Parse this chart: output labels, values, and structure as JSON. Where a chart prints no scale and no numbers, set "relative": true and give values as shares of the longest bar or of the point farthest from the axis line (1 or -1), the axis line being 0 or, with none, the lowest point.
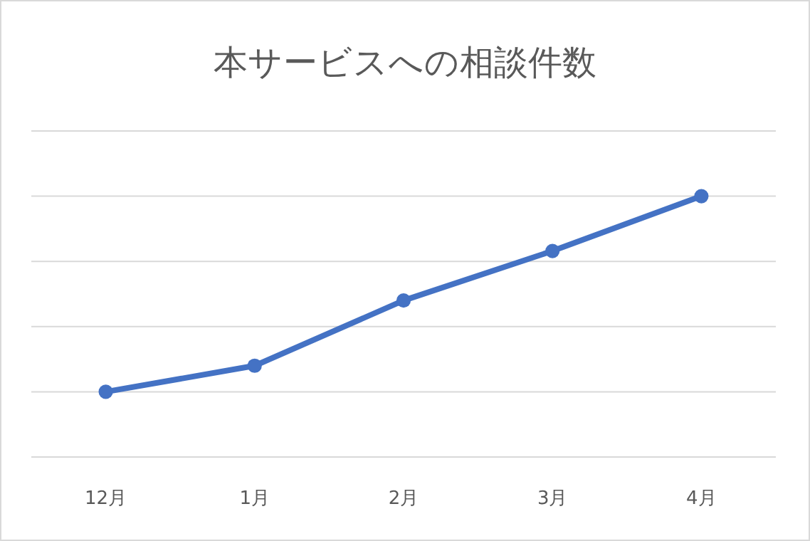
{
  "chart_data": {
    "type": "line",
    "title": "本サービスへの相談件数",
    "categories": [
      "12月",
      "1月",
      "2月",
      "3月",
      "4月"
    ],
    "series": [
      {
        "color": "#4472c4",
        "values": [
          0.25,
          0.35,
          0.6,
          0.79,
          1
        ]
      }
    ],
    "relative": true,
    "grid": "y",
    "marker": "circle",
    "line_style": "solid"
  }
}
